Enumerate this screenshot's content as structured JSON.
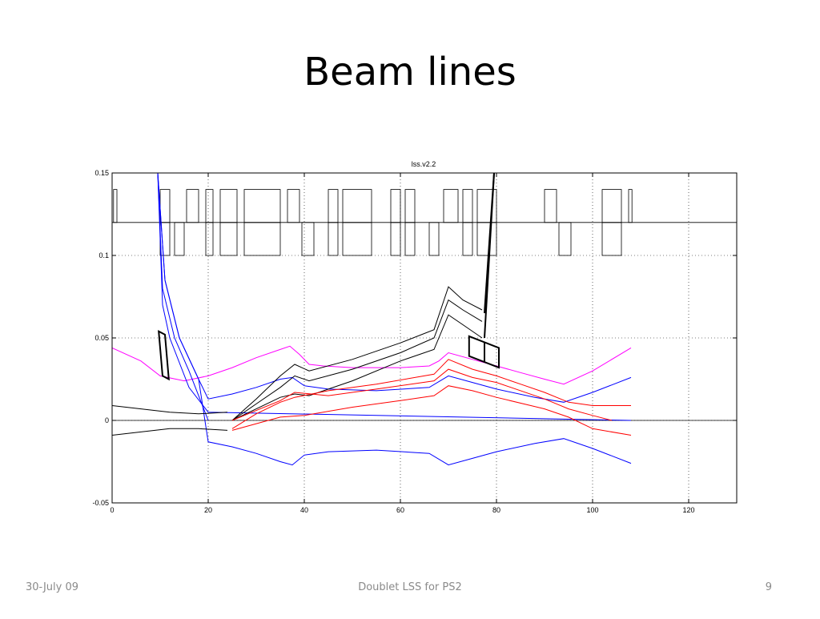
{
  "slide": {
    "title": "Beam lines",
    "footer_left": "30-July 09",
    "footer_center": "Doublet LSS for PS2",
    "footer_right": "9"
  },
  "chart_data": {
    "type": "line",
    "title": "lss.v2.2",
    "xlabel": "",
    "ylabel": "",
    "xlim": [
      0,
      130
    ],
    "ylim": [
      -0.05,
      0.15
    ],
    "x_ticks": [
      0,
      20,
      40,
      60,
      80,
      100,
      120
    ],
    "y_ticks": [
      -0.05,
      0,
      0.05,
      0.1,
      0.15
    ],
    "x_tick_labels": [
      "0",
      "20",
      "40",
      "60",
      "80",
      "100",
      "120"
    ],
    "y_tick_labels": [
      "-0.05",
      "0",
      "0.05",
      "0.1",
      "0.15"
    ],
    "grid": true,
    "grid_style": "dotted",
    "series": [
      {
        "color": "#ff00ff",
        "points": [
          [
            0,
            0.044
          ],
          [
            6,
            0.036
          ],
          [
            10,
            0.027
          ],
          [
            15,
            0.024
          ],
          [
            20,
            0.027
          ],
          [
            25,
            0.032
          ],
          [
            30,
            0.038
          ],
          [
            35,
            0.043
          ],
          [
            37,
            0.045
          ],
          [
            39,
            0.04
          ],
          [
            41,
            0.034
          ],
          [
            44,
            0.033
          ],
          [
            50,
            0.032
          ],
          [
            60,
            0.032
          ],
          [
            66,
            0.033
          ],
          [
            68,
            0.036
          ],
          [
            70,
            0.041
          ],
          [
            75,
            0.037
          ],
          [
            80,
            0.033
          ],
          [
            85,
            0.029
          ],
          [
            90,
            0.025
          ],
          [
            94,
            0.022
          ],
          [
            100,
            0.03
          ],
          [
            108,
            0.044
          ]
        ]
      },
      {
        "color": "#0000ff",
        "points": [
          [
            9.5,
            0.15
          ],
          [
            11,
            0.085
          ],
          [
            14,
            0.05
          ],
          [
            18,
            0.025
          ],
          [
            20,
            0.013
          ],
          [
            25,
            0.016
          ],
          [
            30,
            0.02
          ],
          [
            35,
            0.025
          ],
          [
            37.5,
            0.026
          ],
          [
            40,
            0.021
          ],
          [
            45,
            0.019
          ],
          [
            55,
            0.018
          ],
          [
            66,
            0.02
          ],
          [
            70,
            0.027
          ],
          [
            75,
            0.023
          ],
          [
            80,
            0.019
          ],
          [
            88,
            0.014
          ],
          [
            94,
            0.011
          ],
          [
            100,
            0.017
          ],
          [
            108,
            0.026
          ]
        ]
      },
      {
        "color": "#0000ff",
        "points": [
          [
            9.5,
            0.15
          ],
          [
            11,
            0.085
          ],
          [
            14,
            0.05
          ],
          [
            18,
            0.025
          ],
          [
            20,
            -0.013
          ],
          [
            25,
            -0.016
          ],
          [
            30,
            -0.02
          ],
          [
            35,
            -0.025
          ],
          [
            37.5,
            -0.027
          ],
          [
            40,
            -0.021
          ],
          [
            45,
            -0.019
          ],
          [
            55,
            -0.018
          ],
          [
            66,
            -0.02
          ],
          [
            70,
            -0.027
          ],
          [
            75,
            -0.023
          ],
          [
            80,
            -0.019
          ],
          [
            88,
            -0.014
          ],
          [
            94,
            -0.011
          ],
          [
            100,
            -0.017
          ],
          [
            108,
            -0.026
          ]
        ]
      },
      {
        "color": "#0000ff",
        "points": [
          [
            9.5,
            0.15
          ],
          [
            10.5,
            0.08
          ],
          [
            13,
            0.05
          ],
          [
            16,
            0.03
          ],
          [
            20,
            0.0
          ]
        ]
      },
      {
        "color": "#0000ff",
        "points": [
          [
            9.5,
            0.15
          ],
          [
            10.5,
            0.07
          ],
          [
            12,
            0.05
          ],
          [
            16,
            0.02
          ],
          [
            20,
            0.005
          ],
          [
            108,
            0.0
          ]
        ]
      },
      {
        "color": "#000000",
        "points": [
          [
            0,
            0.009
          ],
          [
            6,
            0.007
          ],
          [
            12,
            0.005
          ],
          [
            18,
            0.004
          ],
          [
            24,
            0.005
          ]
        ]
      },
      {
        "color": "#000000",
        "points": [
          [
            0,
            -0.009
          ],
          [
            6,
            -0.007
          ],
          [
            12,
            -0.005
          ],
          [
            18,
            -0.005
          ],
          [
            24,
            -0.006
          ]
        ]
      },
      {
        "color": "#000000",
        "points": [
          [
            25,
            0.0
          ],
          [
            30,
            0.013
          ],
          [
            35,
            0.027
          ],
          [
            38,
            0.034
          ],
          [
            41,
            0.03
          ],
          [
            50,
            0.037
          ],
          [
            60,
            0.047
          ],
          [
            67,
            0.055
          ],
          [
            70,
            0.081
          ],
          [
            73,
            0.073
          ],
          [
            77,
            0.067
          ]
        ]
      },
      {
        "color": "#000000",
        "points": [
          [
            25,
            0.0
          ],
          [
            30,
            0.01
          ],
          [
            35,
            0.02
          ],
          [
            38,
            0.027
          ],
          [
            41,
            0.024
          ],
          [
            50,
            0.031
          ],
          [
            60,
            0.041
          ],
          [
            67,
            0.05
          ],
          [
            70,
            0.073
          ],
          [
            73,
            0.067
          ],
          [
            77,
            0.06
          ]
        ]
      },
      {
        "color": "#000000",
        "points": [
          [
            25,
            0.0
          ],
          [
            30,
            0.007
          ],
          [
            35,
            0.014
          ],
          [
            38,
            0.016
          ],
          [
            41,
            0.015
          ],
          [
            50,
            0.024
          ],
          [
            60,
            0.036
          ],
          [
            67,
            0.043
          ],
          [
            70,
            0.064
          ],
          [
            73,
            0.058
          ],
          [
            77,
            0.05
          ]
        ]
      },
      {
        "color": "#ff0000",
        "points": [
          [
            25,
            -0.005
          ],
          [
            30,
            0.004
          ],
          [
            35,
            0.011
          ],
          [
            38,
            0.014
          ],
          [
            45,
            0.018
          ],
          [
            55,
            0.022
          ],
          [
            67,
            0.028
          ],
          [
            70,
            0.037
          ],
          [
            75,
            0.031
          ],
          [
            80,
            0.027
          ],
          [
            85,
            0.022
          ],
          [
            90,
            0.017
          ],
          [
            95,
            0.011
          ],
          [
            100,
            0.009
          ],
          [
            108,
            0.009
          ]
        ]
      },
      {
        "color": "#ff0000",
        "points": [
          [
            25,
            -0.006
          ],
          [
            30,
            -0.002
          ],
          [
            35,
            0.002
          ],
          [
            40,
            0.003
          ],
          [
            50,
            0.008
          ],
          [
            60,
            0.012
          ],
          [
            67,
            0.015
          ],
          [
            70,
            0.021
          ],
          [
            75,
            0.018
          ],
          [
            80,
            0.014
          ],
          [
            90,
            0.007
          ],
          [
            95,
            0.002
          ],
          [
            100,
            -0.005
          ],
          [
            108,
            -0.009
          ]
        ]
      },
      {
        "color": "#ff0000",
        "points": [
          [
            25,
            0.0
          ],
          [
            30,
            0.006
          ],
          [
            35,
            0.012
          ],
          [
            38,
            0.017
          ],
          [
            45,
            0.015
          ],
          [
            55,
            0.019
          ],
          [
            67,
            0.024
          ],
          [
            70,
            0.031
          ],
          [
            75,
            0.026
          ],
          [
            80,
            0.023
          ],
          [
            90,
            0.013
          ],
          [
            95,
            0.007
          ],
          [
            100,
            0.003
          ],
          [
            104,
            0.0
          ]
        ]
      }
    ],
    "beam_direction_lines": [
      {
        "color": "#000000",
        "points": [
          [
            77.5,
            0.05
          ],
          [
            79.5,
            0.15
          ]
        ]
      },
      {
        "color": "#000000",
        "points": [
          [
            77.5,
            0.065
          ],
          [
            79.5,
            0.15
          ]
        ]
      }
    ],
    "element_outlines": [
      [
        [
          9.7,
          0.054
        ],
        [
          11,
          0.052
        ],
        [
          11.8,
          0.025
        ],
        [
          10.5,
          0.027
        ]
      ],
      [
        [
          74.3,
          0.051
        ],
        [
          80.5,
          0.044
        ],
        [
          80.5,
          0.032
        ],
        [
          74.3,
          0.039
        ]
      ]
    ],
    "horizontal_reference": [
      {
        "y": 0.12
      },
      {
        "y": 0.0
      }
    ],
    "lattice_elements": [
      {
        "x1": 0.3,
        "x2": 1,
        "dir": "up"
      },
      {
        "x1": 10,
        "x2": 12,
        "dir": "up"
      },
      {
        "x1": 10,
        "x2": 12,
        "dir": "down"
      },
      {
        "x1": 13,
        "x2": 15,
        "dir": "down"
      },
      {
        "x1": 15.5,
        "x2": 18,
        "dir": "up"
      },
      {
        "x1": 19.5,
        "x2": 21,
        "dir": "up"
      },
      {
        "x1": 19.5,
        "x2": 21,
        "dir": "down"
      },
      {
        "x1": 22.5,
        "x2": 26,
        "dir": "up"
      },
      {
        "x1": 22.5,
        "x2": 26,
        "dir": "down"
      },
      {
        "x1": 27.5,
        "x2": 35,
        "dir": "up"
      },
      {
        "x1": 27.5,
        "x2": 35,
        "dir": "down"
      },
      {
        "x1": 36.5,
        "x2": 39,
        "dir": "up"
      },
      {
        "x1": 39.5,
        "x2": 42,
        "dir": "down"
      },
      {
        "x1": 45,
        "x2": 47,
        "dir": "up"
      },
      {
        "x1": 45,
        "x2": 47,
        "dir": "down"
      },
      {
        "x1": 48,
        "x2": 54,
        "dir": "up"
      },
      {
        "x1": 48,
        "x2": 54,
        "dir": "down"
      },
      {
        "x1": 58,
        "x2": 60,
        "dir": "up"
      },
      {
        "x1": 58,
        "x2": 60,
        "dir": "down"
      },
      {
        "x1": 61,
        "x2": 63,
        "dir": "up"
      },
      {
        "x1": 61,
        "x2": 63,
        "dir": "down"
      },
      {
        "x1": 66,
        "x2": 68,
        "dir": "down"
      },
      {
        "x1": 69,
        "x2": 72,
        "dir": "up"
      },
      {
        "x1": 73,
        "x2": 75,
        "dir": "up"
      },
      {
        "x1": 73,
        "x2": 75,
        "dir": "down"
      },
      {
        "x1": 76,
        "x2": 80,
        "dir": "up"
      },
      {
        "x1": 76,
        "x2": 80,
        "dir": "down"
      },
      {
        "x1": 90,
        "x2": 92.5,
        "dir": "up"
      },
      {
        "x1": 93,
        "x2": 95.5,
        "dir": "down"
      },
      {
        "x1": 102,
        "x2": 106,
        "dir": "up"
      },
      {
        "x1": 102,
        "x2": 106,
        "dir": "down"
      },
      {
        "x1": 107.5,
        "x2": 108.2,
        "dir": "up"
      }
    ]
  }
}
